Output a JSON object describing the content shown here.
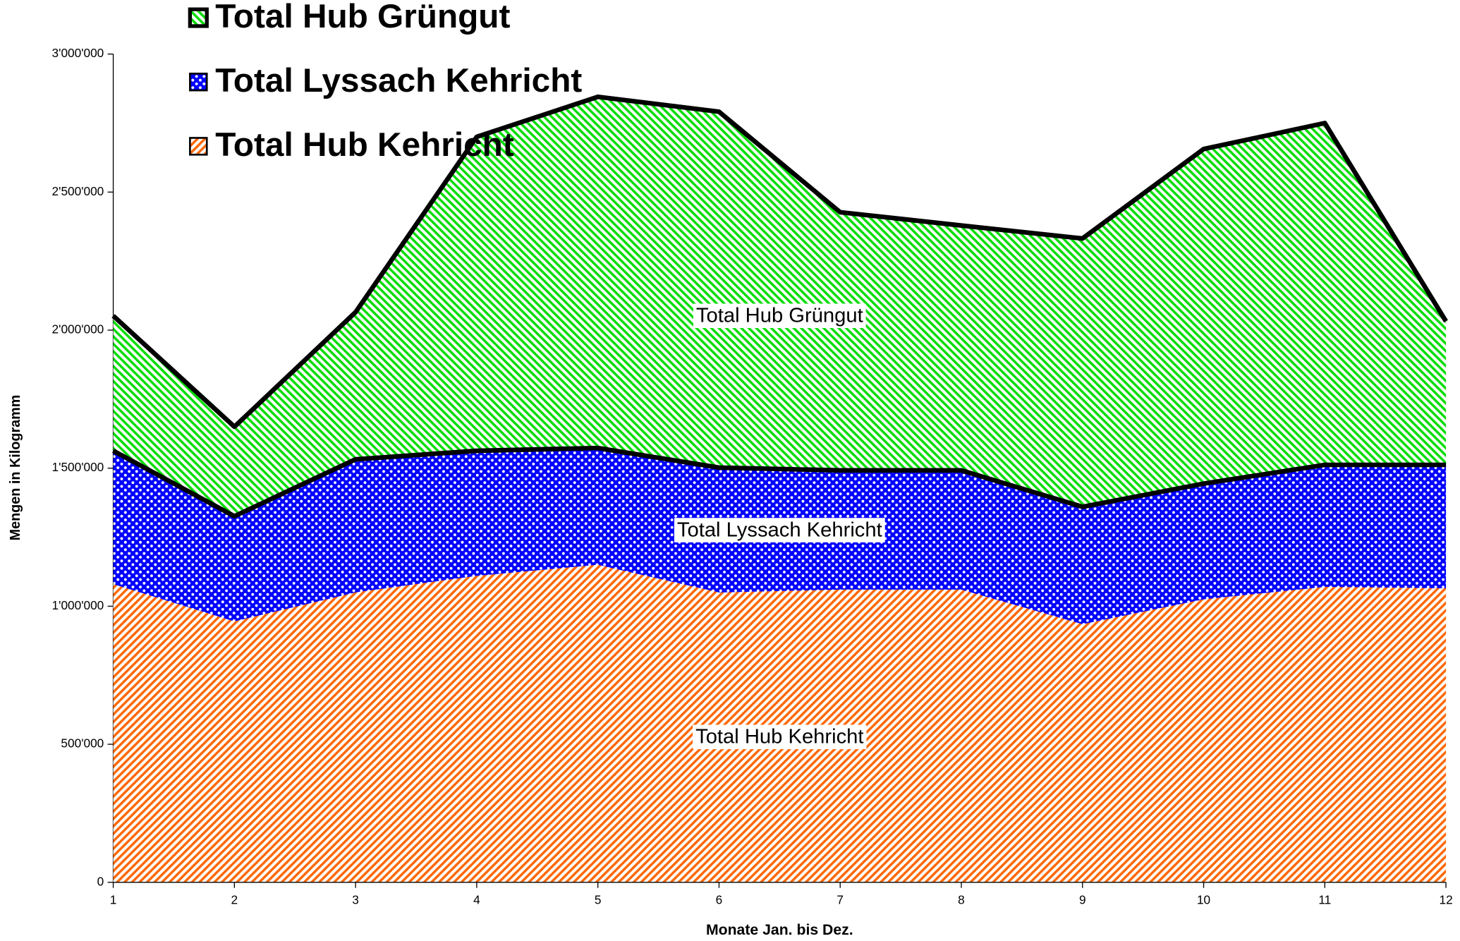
{
  "chart_data": {
    "type": "stacked-area",
    "x_label": "Monate Jan. bis Dez.",
    "y_label": "Mengen in Kilogramm",
    "x": [
      1,
      2,
      3,
      4,
      5,
      6,
      7,
      8,
      9,
      10,
      11,
      12
    ],
    "xlim": [
      1,
      12
    ],
    "xticks": [
      1,
      2,
      3,
      4,
      5,
      6,
      7,
      8,
      9,
      10,
      11,
      12
    ],
    "ylim": [
      0,
      3000000
    ],
    "yticks": [
      0,
      {
        "value": 500000,
        "label": "500'000"
      },
      {
        "value": 1000000,
        "label": "1'000'000"
      },
      {
        "value": 1500000,
        "label": "1'500'000"
      },
      {
        "value": 2000000,
        "label": "2'000'000"
      },
      {
        "value": 2500000,
        "label": "2'500'000"
      },
      {
        "value": 3000000,
        "label": "3'000'000"
      }
    ],
    "series": [
      {
        "name": "Total Hub Kehricht",
        "color": "#ff6600",
        "values": [
          1080000,
          945000,
          1050000,
          1110000,
          1150000,
          1050000,
          1060000,
          1060000,
          935000,
          1025000,
          1070000,
          1065000
        ]
      },
      {
        "name": "Total Lyssach Kehricht",
        "color": "#0000ff",
        "values": [
          483000,
          381000,
          482000,
          453000,
          423000,
          452000,
          432000,
          432000,
          425000,
          419000,
          442000,
          447000
        ]
      },
      {
        "name": "Total Hub Grüngut",
        "color": "#00dd00",
        "values": [
          489000,
          324000,
          533000,
          1137000,
          1272000,
          1289000,
          935000,
          887000,
          972000,
          1212000,
          1238000,
          520000
        ]
      }
    ]
  }
}
